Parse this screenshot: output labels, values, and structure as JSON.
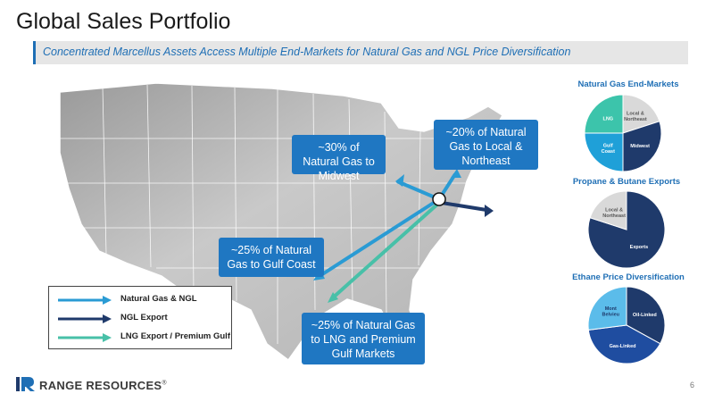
{
  "header": {
    "title": "Global Sales Portfolio",
    "subtitle": "Concentrated Marcellus Assets Access Multiple End-Markets for Natural Gas and NGL Price Diversification"
  },
  "callouts": {
    "midwest": "~30% of Natural Gas to Midwest",
    "northeast": "~20% of Natural Gas to Local & Northeast",
    "gulf_coast": "~25% of Natural Gas to Gulf Coast",
    "lng": "~25% of Natural Gas to LNG and Premium Gulf Markets"
  },
  "legend": {
    "items": [
      {
        "label": "Natural Gas & NGL",
        "color": "#2a9bd4"
      },
      {
        "label": "NGL Export",
        "color": "#1f3a6b"
      },
      {
        "label": "LNG Export / Premium Gulf",
        "color": "#48c0a8"
      }
    ]
  },
  "pies": [
    {
      "title": "Natural Gas End-Markets",
      "slices": [
        {
          "label": "Local & Northeast",
          "value": 20,
          "color": "#d9d9d9",
          "text_color": "#555555"
        },
        {
          "label": "Midwest",
          "value": 30,
          "color": "#1f3a6b",
          "text_color": "#ffffff"
        },
        {
          "label": "Gulf Coast",
          "value": 25,
          "color": "#1fa0d8",
          "text_color": "#ffffff"
        },
        {
          "label": "LNG",
          "value": 25,
          "color": "#3cc4ab",
          "text_color": "#ffffff"
        }
      ]
    },
    {
      "title": "Propane & Butane Exports",
      "slices": [
        {
          "label": "Exports",
          "value": 80,
          "color": "#1f3a6b",
          "text_color": "#ffffff"
        },
        {
          "label": "Local & Northeast",
          "value": 20,
          "color": "#d9d9d9",
          "text_color": "#555555"
        }
      ]
    },
    {
      "title": "Ethane Price Diversification",
      "slices": [
        {
          "label": "Oil-Linked",
          "value": 33,
          "color": "#1f3a6b",
          "text_color": "#ffffff"
        },
        {
          "label": "Gas-Linked",
          "value": 40,
          "color": "#1f4da0",
          "text_color": "#ffffff"
        },
        {
          "label": "Mont Belvieu",
          "value": 27,
          "color": "#5bbcea",
          "text_color": "#1f3a6b"
        }
      ]
    }
  ],
  "footer": {
    "logo_text": "RANGE RESOURCES",
    "logo_mark": "®",
    "page_number": "6"
  }
}
